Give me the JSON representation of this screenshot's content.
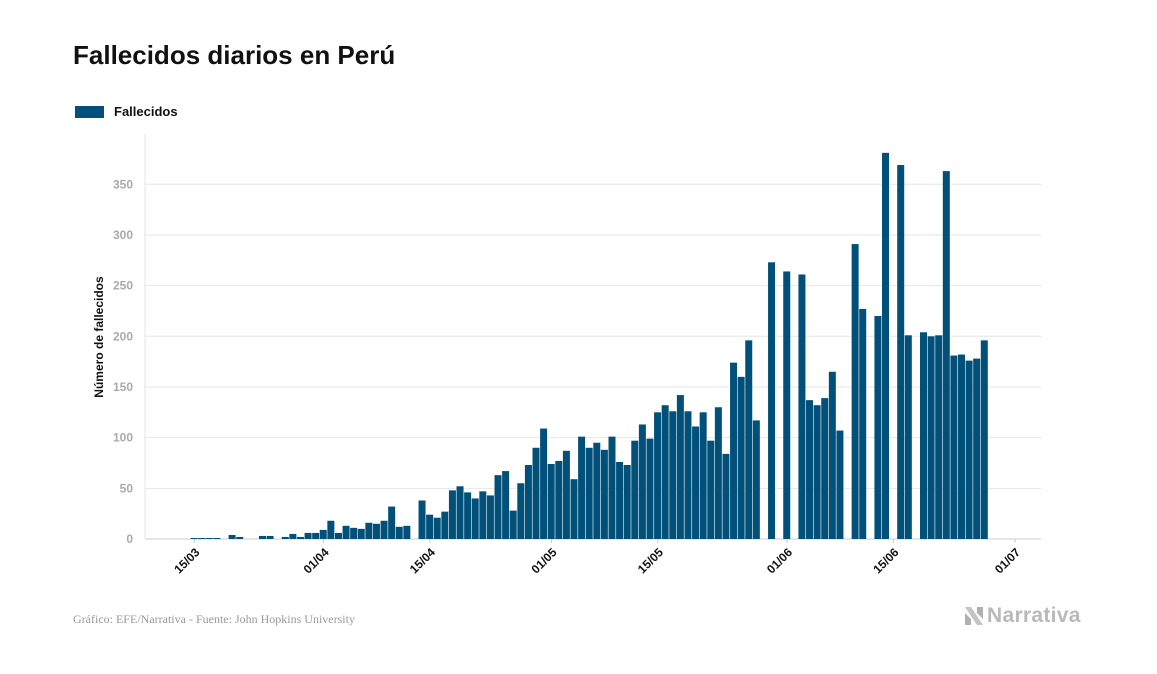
{
  "title": "Fallecidos diarios en Perú",
  "footer": "Gráfico: EFE/Narrativa - Fuente: John Hopkins University",
  "brand": "Narrativa",
  "colors": {
    "bar": "#00507a",
    "grid": "#e6e6e6",
    "tick": "#aaaaaa",
    "text": "#111111"
  },
  "chart_data": {
    "type": "bar",
    "title": "Fallecidos diarios en Perú",
    "ylabel": "Número de fallecidos",
    "xlabel": "",
    "ylim": [
      0,
      395
    ],
    "yticks": [
      0,
      50,
      100,
      150,
      200,
      250,
      300,
      350
    ],
    "xticks": [
      "15/03",
      "01/04",
      "15/04",
      "01/05",
      "15/05",
      "01/06",
      "15/06",
      "01/07"
    ],
    "grid": true,
    "legend_position": "top-left",
    "series": [
      {
        "name": "Fallecidos",
        "color": "#00507a",
        "x": [
          "14/03",
          "15/03",
          "16/03",
          "17/03",
          "18/03",
          "19/03",
          "20/03",
          "21/03",
          "22/03",
          "23/03",
          "24/03",
          "25/03",
          "26/03",
          "27/03",
          "28/03",
          "29/03",
          "30/03",
          "31/03",
          "01/04",
          "02/04",
          "03/04",
          "04/04",
          "05/04",
          "06/04",
          "07/04",
          "08/04",
          "09/04",
          "10/04",
          "11/04",
          "12/04",
          "13/04",
          "14/04",
          "15/04",
          "16/04",
          "17/04",
          "18/04",
          "19/04",
          "20/04",
          "21/04",
          "22/04",
          "23/04",
          "24/04",
          "25/04",
          "26/04",
          "27/04",
          "28/04",
          "29/04",
          "30/04",
          "01/05",
          "02/05",
          "03/05",
          "04/05",
          "05/05",
          "06/05",
          "07/05",
          "08/05",
          "09/05",
          "10/05",
          "11/05",
          "12/05",
          "13/05",
          "14/05",
          "15/05",
          "16/05",
          "17/05",
          "18/05",
          "19/05",
          "20/05",
          "21/05",
          "22/05",
          "23/05",
          "24/05",
          "25/05",
          "26/05",
          "27/05",
          "28/05",
          "29/05",
          "30/05",
          "31/05",
          "01/06",
          "02/06",
          "03/06",
          "04/06",
          "05/06",
          "06/06",
          "07/06",
          "08/06",
          "09/06",
          "10/06",
          "11/06",
          "12/06",
          "13/06",
          "14/06",
          "15/06",
          "16/06",
          "17/06",
          "18/06",
          "19/06",
          "20/06",
          "21/06",
          "22/06",
          "23/06",
          "24/06",
          "25/06",
          "26/06",
          "27/06"
        ],
        "values": [
          0,
          1,
          1,
          1,
          1,
          0,
          4,
          2,
          0,
          0,
          3,
          3,
          0,
          2,
          5,
          2,
          6,
          6,
          9,
          18,
          6,
          13,
          11,
          10,
          16,
          15,
          18,
          32,
          12,
          13,
          0,
          38,
          24,
          21,
          27,
          48,
          52,
          46,
          40,
          47,
          43,
          63,
          67,
          28,
          55,
          73,
          90,
          109,
          74,
          77,
          87,
          59,
          101,
          90,
          95,
          88,
          101,
          76,
          73,
          97,
          113,
          99,
          125,
          132,
          126,
          142,
          126,
          111,
          125,
          97,
          130,
          84,
          174,
          160,
          196,
          117,
          0,
          273,
          0,
          264,
          0,
          261,
          137,
          132,
          139,
          165,
          107,
          0,
          291,
          227,
          0,
          220,
          381,
          0,
          369,
          201,
          0,
          204,
          200,
          201,
          363,
          181,
          182,
          176,
          178,
          196
        ]
      }
    ]
  }
}
